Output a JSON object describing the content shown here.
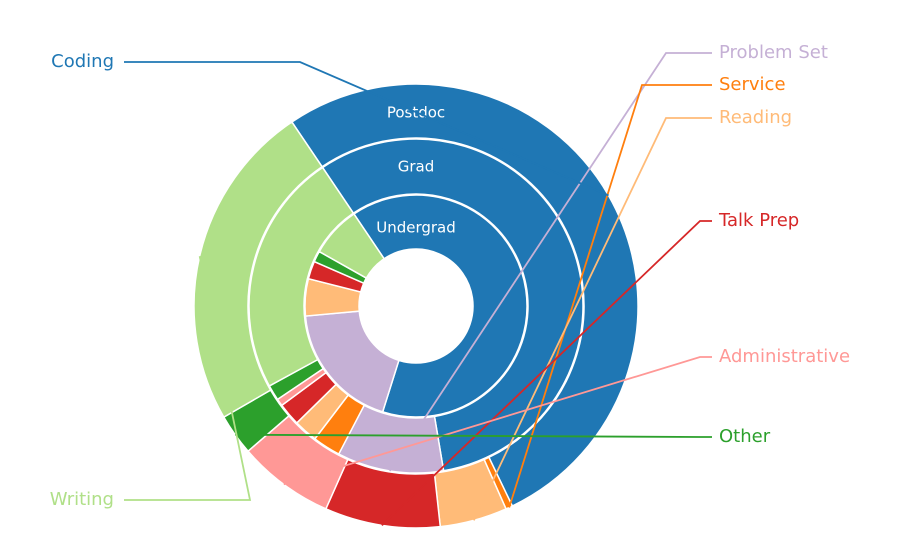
{
  "chart_data": {
    "type": "pie",
    "variant": "nested-donut",
    "start_angle_deg": -34,
    "direction": "clockwise",
    "categories": [
      "Coding",
      "Problem Set",
      "Service",
      "Reading",
      "Talk Prep",
      "Administrative",
      "Other",
      "Writing"
    ],
    "colors": {
      "Coding": "#1f77b4",
      "Problem Set": "#c5b0d5",
      "Service": "#ff7f0e",
      "Reading": "#ffbb78",
      "Talk Prep": "#d62728",
      "Administrative": "#ff9896",
      "Other": "#2ca02c",
      "Writing": "#b0e088"
    },
    "series": [
      {
        "name": "Undergrad",
        "values": {
          "Coding": 64.3,
          "Problem Set": 18.7,
          "Service": 0,
          "Reading": 5.4,
          "Talk Prep": 2.6,
          "Administrative": 0,
          "Other": 1.6,
          "Writing": 7.4
        }
      },
      {
        "name": "Grad",
        "values": {
          "Coding": 56.8,
          "Problem Set": 10.3,
          "Service": 2.7,
          "Reading": 2.3,
          "Talk Prep": 2.2,
          "Administrative": 0.7,
          "Other": 1.5,
          "Writing": 23.5
        }
      },
      {
        "name": "Postdoc",
        "values": {
          "Coding": 52.3,
          "Problem Set": 0,
          "Service": 0.5,
          "Reading": 4.9,
          "Talk Prep": 8.4,
          "Administrative": 7.0,
          "Other": 3.0,
          "Writing": 23.9
        }
      }
    ],
    "legend": [
      {
        "label": "Problem Set",
        "category": "Problem Set",
        "side": "right"
      },
      {
        "label": "Service",
        "category": "Service",
        "side": "right"
      },
      {
        "label": "Reading",
        "category": "Reading",
        "side": "right"
      },
      {
        "label": "Talk Prep",
        "category": "Talk Prep",
        "side": "right"
      },
      {
        "label": "Administrative",
        "category": "Administrative",
        "side": "right"
      },
      {
        "label": "Other",
        "category": "Other",
        "side": "right"
      },
      {
        "label": "Coding",
        "category": "Coding",
        "side": "left"
      },
      {
        "label": "Writing",
        "category": "Writing",
        "side": "left"
      }
    ]
  }
}
